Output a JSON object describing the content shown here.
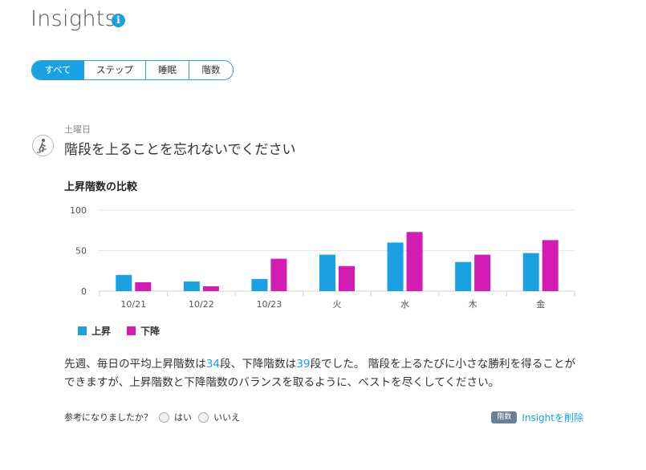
{
  "page": {
    "title": "Insights"
  },
  "tabs": [
    "すべて",
    "ステップ",
    "睡眠",
    "階数"
  ],
  "insight": {
    "day": "土曜日",
    "headline": "階段を上ることを忘れないでください",
    "chart_title": "上昇階数の比較",
    "desc": {
      "p1": "先週、毎日の平均上昇階数は",
      "up_avg": "34",
      "p2": "段、下降階数は",
      "down_avg": "39",
      "p3": "段でした。 階段を上るたびに小さな勝利を得ることができますが、上昇階数と下降階数のバランスを取るように、ベストを尽くしてください。"
    },
    "feedback": {
      "question": "参考になりましたか？",
      "yes": "はい",
      "no": "いいえ"
    },
    "tag": "階数",
    "remove_link": "Insightを削除"
  },
  "colors": {
    "up": "#1ba1e2",
    "down": "#d21cb4"
  },
  "chart_data": {
    "type": "bar",
    "categories": [
      "10/21",
      "10/22",
      "10/23",
      "火",
      "水",
      "木",
      "金"
    ],
    "series": [
      {
        "name": "上昇",
        "values": [
          20,
          12,
          15,
          45,
          60,
          36,
          47
        ]
      },
      {
        "name": "下降",
        "values": [
          11,
          6,
          40,
          31,
          73,
          45,
          63
        ]
      }
    ],
    "ylim": [
      0,
      100
    ],
    "yticks": [
      0,
      50,
      100
    ],
    "grid": true,
    "legend": "bottom-left"
  }
}
